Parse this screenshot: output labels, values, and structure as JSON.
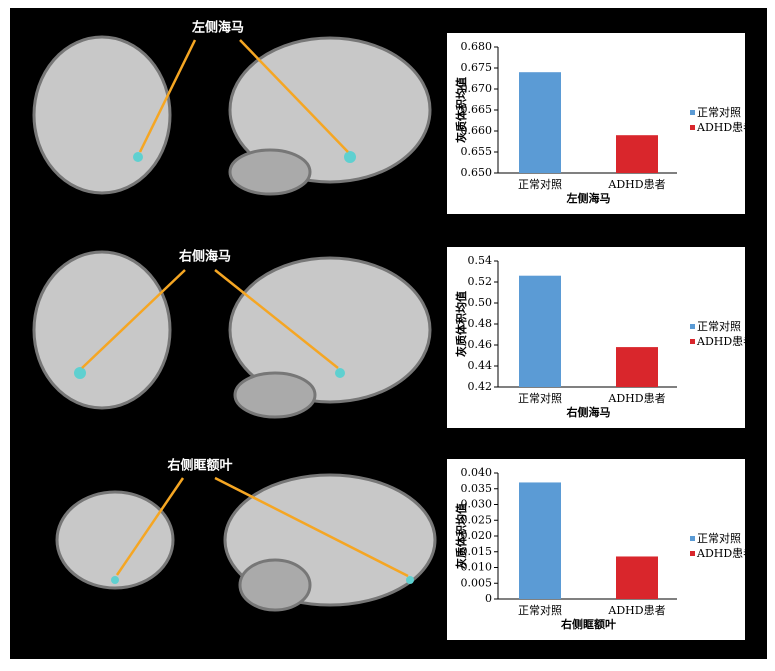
{
  "chart_data": [
    {
      "type": "bar",
      "annotation": "左侧海马",
      "ylabel": "灰质体积均值",
      "xlabel": "左侧海马",
      "categories": [
        "正常对照",
        "ADHD患者"
      ],
      "values": [
        0.674,
        0.659
      ],
      "colors": [
        "#5b9bd5",
        "#d9262c"
      ],
      "ylim": [
        0.65,
        0.68
      ],
      "yticks": [
        {
          "value": 0.65,
          "label": "0.650"
        },
        0.655,
        {
          "value": 0.66,
          "label": "0.660"
        },
        0.665,
        {
          "value": 0.67,
          "label": "0.670"
        },
        0.675,
        {
          "value": 0.68,
          "label": "0.680"
        }
      ],
      "legend": "right"
    },
    {
      "type": "bar",
      "annotation": "右侧海马",
      "ylabel": "灰质体积均值",
      "xlabel": "右侧海马",
      "categories": [
        "正常对照",
        "ADHD患者"
      ],
      "values": [
        0.526,
        0.458
      ],
      "colors": [
        "#5b9bd5",
        "#d9262c"
      ],
      "ylim": [
        0.42,
        0.54
      ],
      "yticks": [
        0.42,
        0.44,
        0.46,
        0.48,
        {
          "value": 0.5,
          "label": "0.50"
        },
        0.52,
        0.54
      ],
      "legend": "right"
    },
    {
      "type": "bar",
      "annotation": "右侧眶额叶",
      "ylabel": "灰质体积均值",
      "xlabel": "右侧眶额叶",
      "categories": [
        "正常对照",
        "ADHD患者"
      ],
      "values": [
        0.037,
        0.0135
      ],
      "colors": [
        "#5b9bd5",
        "#d9262c"
      ],
      "ylim": [
        0,
        0.04
      ],
      "yticks": [
        0,
        0.005,
        {
          "value": 0.01,
          "label": "0.010"
        },
        0.015,
        {
          "value": 0.02,
          "label": "0.020"
        },
        0.025,
        {
          "value": 0.03,
          "label": "0.030"
        },
        0.035,
        {
          "value": 0.04,
          "label": "0.040"
        }
      ],
      "legend": "right"
    }
  ]
}
